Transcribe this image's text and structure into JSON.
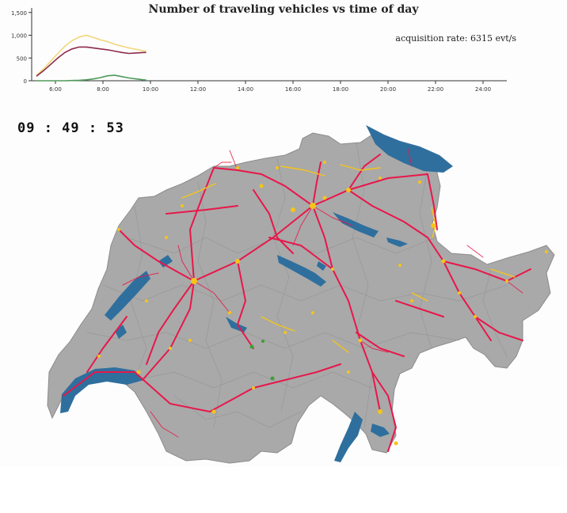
{
  "chart": {
    "title": "Number of traveling vehicles vs time of day",
    "acquisition_text": "acquisition rate: 6315 evt/s"
  },
  "clock": "09 : 49 : 53",
  "colors": {
    "background": "#fdfdfd",
    "land": "#a9a9a9",
    "border": "#8c8c8c",
    "lake": "#2f6f9e",
    "car": "#e8174a",
    "train": "#f5c518",
    "other": "#3f9e3a",
    "series_yellow": "#f1d77a",
    "series_maroon": "#8e2a4a",
    "series_green": "#4f9a5a"
  },
  "chart_data": {
    "type": "line",
    "title": "Number of traveling vehicles vs time of day",
    "xlabel": "",
    "ylabel": "",
    "x_ticks": [
      "6:00",
      "8:00",
      "10:00",
      "12:00",
      "14:00",
      "16:00",
      "18:00",
      "20:00",
      "22:00",
      "24:00"
    ],
    "y_ticks": [
      "0",
      "500",
      "1,000",
      "1,500"
    ],
    "xlim": [
      5,
      25
    ],
    "ylim": [
      0,
      1600
    ],
    "x": [
      5.2,
      5.5,
      5.8,
      6.1,
      6.4,
      6.7,
      7.0,
      7.3,
      7.6,
      7.9,
      8.2,
      8.5,
      8.8,
      9.1,
      9.4,
      9.7,
      9.82
    ],
    "series": [
      {
        "color": "#f1d77a",
        "values": [
          120,
          260,
          430,
          600,
          760,
          880,
          960,
          1000,
          950,
          900,
          860,
          800,
          760,
          720,
          690,
          660,
          650
        ]
      },
      {
        "color": "#8e2a4a",
        "values": [
          100,
          220,
          360,
          500,
          620,
          700,
          740,
          740,
          720,
          700,
          680,
          650,
          620,
          600,
          610,
          620,
          620
        ]
      },
      {
        "color": "#4f9a5a",
        "values": [
          0,
          0,
          0,
          0,
          0,
          5,
          10,
          20,
          40,
          70,
          110,
          120,
          90,
          60,
          40,
          20,
          15
        ]
      }
    ]
  }
}
